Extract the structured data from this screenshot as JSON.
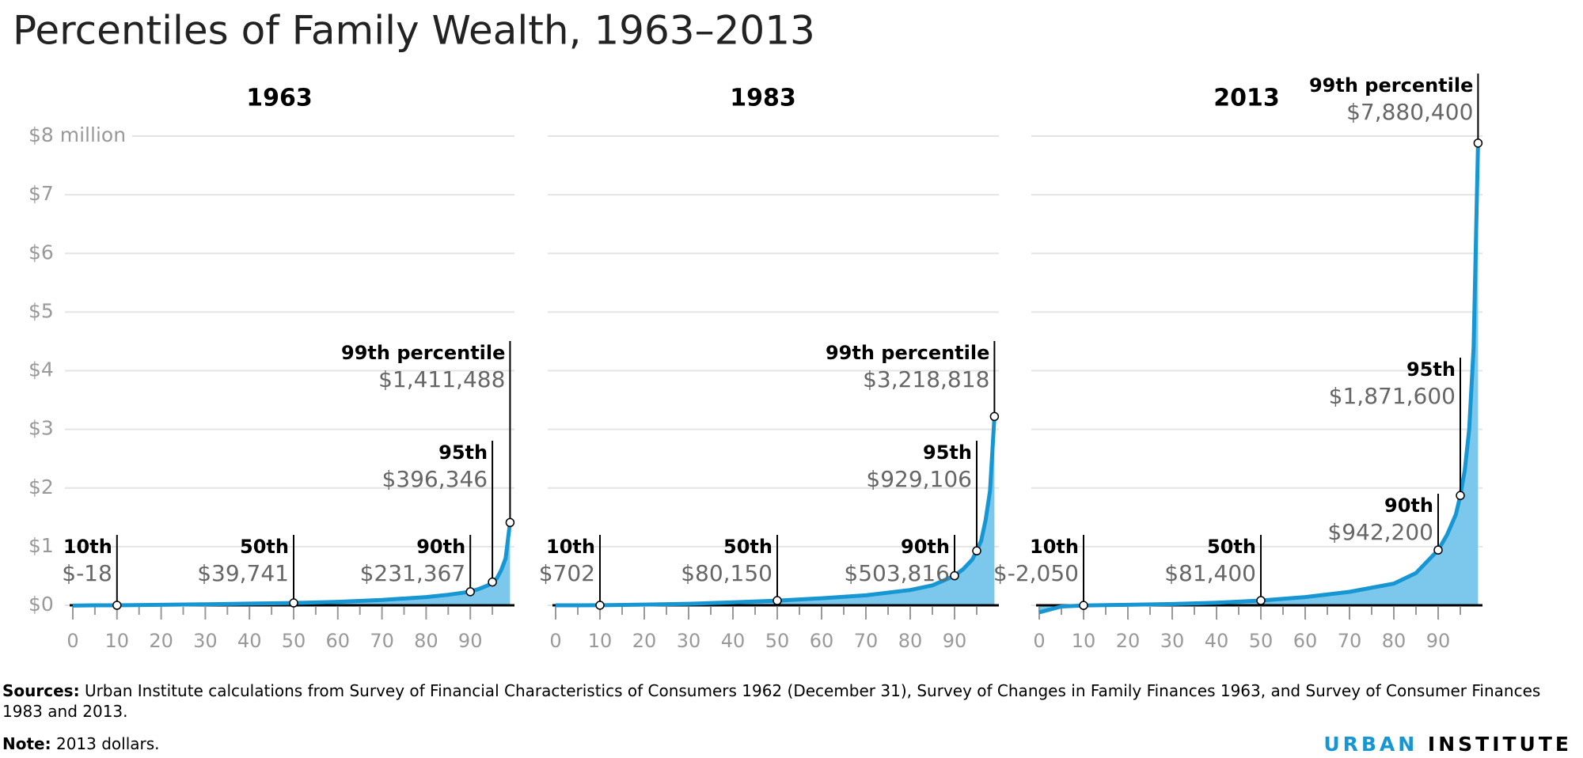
{
  "title": "Percentiles of Family Wealth, 1963–2013",
  "chart_data": [
    {
      "type": "line",
      "title": "1963",
      "color": "#1696d2",
      "fill": "#7cc8ec",
      "grid": true,
      "xlim": [
        0,
        100
      ],
      "xticks": [
        0,
        10,
        20,
        30,
        40,
        50,
        60,
        70,
        80,
        90
      ],
      "xminorticks": [
        5,
        15,
        25,
        35,
        45,
        55,
        65,
        75,
        85,
        95
      ],
      "ylim": [
        0,
        8
      ],
      "yticks": [
        {
          "value": 0,
          "label": "$0"
        },
        {
          "value": 1,
          "label": "$1"
        },
        {
          "value": 2,
          "label": "$2"
        },
        {
          "value": 3,
          "label": "$3"
        },
        {
          "value": 4,
          "label": "$4"
        },
        {
          "value": 5,
          "label": "$5"
        },
        {
          "value": 6,
          "label": "$6"
        },
        {
          "value": 7,
          "label": "$7"
        },
        {
          "value": 8,
          "label": "$8 million"
        }
      ],
      "x": [
        0,
        5,
        10,
        20,
        30,
        40,
        50,
        60,
        70,
        80,
        85,
        90,
        92,
        94,
        95,
        96,
        97,
        98,
        99
      ],
      "values": [
        -0.005,
        0,
        -1.8e-05,
        0.008,
        0.018,
        0.028,
        0.039741,
        0.06,
        0.09,
        0.14,
        0.18,
        0.231367,
        0.28,
        0.34,
        0.396346,
        0.46,
        0.6,
        0.8,
        1.411488
      ],
      "labels": [
        null,
        null,
        "10th",
        null,
        null,
        null,
        "50th",
        null,
        null,
        null,
        null,
        "90th",
        null,
        null,
        "95th",
        null,
        null,
        null,
        "99th percentile"
      ],
      "value_labels": [
        null,
        null,
        "$-18",
        null,
        null,
        null,
        "$39,741",
        null,
        null,
        null,
        null,
        "$231,367",
        null,
        null,
        "$396,346",
        null,
        null,
        null,
        "$1,411,488"
      ]
    },
    {
      "type": "line",
      "title": "1983",
      "color": "#1696d2",
      "fill": "#7cc8ec",
      "grid": true,
      "xlim": [
        0,
        100
      ],
      "xticks": [
        0,
        10,
        20,
        30,
        40,
        50,
        60,
        70,
        80,
        90
      ],
      "xminorticks": [
        5,
        15,
        25,
        35,
        45,
        55,
        65,
        75,
        85,
        95
      ],
      "ylim": [
        0,
        8
      ],
      "yticks": [
        0,
        1,
        2,
        3,
        4,
        5,
        6,
        7,
        8
      ],
      "x": [
        0,
        5,
        10,
        20,
        30,
        40,
        50,
        60,
        70,
        80,
        85,
        90,
        92,
        94,
        95,
        96,
        97,
        98,
        99
      ],
      "values": [
        0,
        0.0002,
        0.000702,
        0.012,
        0.025,
        0.05,
        0.08015,
        0.12,
        0.17,
        0.26,
        0.34,
        0.503816,
        0.62,
        0.78,
        0.929106,
        1.1,
        1.45,
        1.95,
        3.218818
      ],
      "labels": [
        null,
        null,
        "10th",
        null,
        null,
        null,
        "50th",
        null,
        null,
        null,
        null,
        "90th",
        null,
        null,
        "95th",
        null,
        null,
        null,
        "99th percentile"
      ],
      "value_labels": [
        null,
        null,
        "$702",
        null,
        null,
        null,
        "$80,150",
        null,
        null,
        null,
        null,
        "$503,816",
        null,
        null,
        "$929,106",
        null,
        null,
        null,
        "$3,218,818"
      ]
    },
    {
      "type": "line",
      "title": "2013",
      "color": "#1696d2",
      "fill": "#7cc8ec",
      "grid": true,
      "xlim": [
        0,
        100
      ],
      "xticks": [
        0,
        10,
        20,
        30,
        40,
        50,
        60,
        70,
        80,
        90
      ],
      "xminorticks": [
        5,
        15,
        25,
        35,
        45,
        55,
        65,
        75,
        85,
        95
      ],
      "ylim": [
        0,
        8
      ],
      "yticks": [
        0,
        1,
        2,
        3,
        4,
        5,
        6,
        7,
        8
      ],
      "x": [
        0,
        5,
        10,
        20,
        30,
        40,
        50,
        60,
        70,
        80,
        85,
        90,
        92,
        94,
        95,
        96,
        97,
        98,
        99
      ],
      "values": [
        -0.12,
        -0.02,
        -0.00205,
        0.008,
        0.022,
        0.045,
        0.0814,
        0.14,
        0.23,
        0.37,
        0.55,
        0.9422,
        1.2,
        1.55,
        1.8716,
        2.3,
        3.0,
        4.4,
        7.8804
      ],
      "labels": [
        null,
        null,
        "10th",
        null,
        null,
        null,
        "50th",
        null,
        null,
        null,
        null,
        "90th",
        null,
        null,
        "95th",
        null,
        null,
        null,
        "99th percentile"
      ],
      "value_labels": [
        null,
        null,
        "$-2,050",
        null,
        null,
        null,
        "$81,400",
        null,
        null,
        null,
        null,
        "$942,200",
        null,
        null,
        "$1,871,600",
        null,
        null,
        null,
        "$7,880,400"
      ]
    }
  ],
  "sources": {
    "label": "Sources:",
    "text": "Urban Institute calculations from Survey of Financial Characteristics of Consumers 1962 (December 31), Survey of Changes in Family Finances 1963, and Survey of Consumer Finances 1983 and 2013."
  },
  "note": {
    "label": "Note:",
    "text": "2013 dollars."
  },
  "brand": {
    "first": "URBAN",
    "second": "INSTITUTE"
  }
}
